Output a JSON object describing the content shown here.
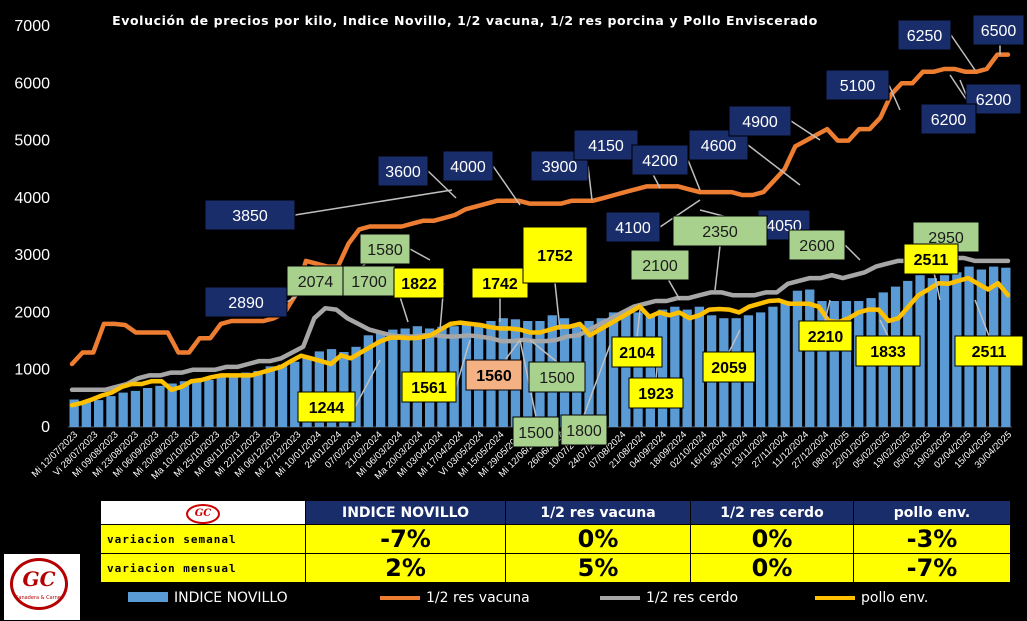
{
  "chart_data": {
    "type": "bar+line",
    "title": "Evolución de precios por kilo, Indice Novillo, 1/2 vacuna, 1/2 res porcina y Pollo Enviscerado",
    "ylim": [
      0,
      7000
    ],
    "yticks": [
      0,
      1000,
      2000,
      3000,
      4000,
      5000,
      6000,
      7000
    ],
    "x_tick_labels": [
      "Mi 12/07/2023",
      "Vi 28/07/2023",
      "Mi 09/08/2023",
      "Mi 23/08/2023",
      "Mi 06/09/2023",
      "Mi 20/09/2023",
      "Ma 10/10/2023",
      "Mi 25/10/2023",
      "Mi 08/11/2023",
      "Mi 22/11/2023",
      "Mi 06/12/2023",
      "Mi 27/12/2023",
      "Mi 10/01/2024",
      "24/01/2024",
      "07/02/2024",
      "21/02/2024",
      "Mi 06/03/2024",
      "Ma 20/03/2024",
      "Mi 03/04/2024",
      "Mi 17/04/2024",
      "Vi 03/05/2024",
      "Mi 15/05/2024",
      "Mi 29/05/2024",
      "Mi 12/06/2024",
      "26/06/2024",
      "10/07/2024",
      "24/07/2024",
      "07/08/2024",
      "21/08/2024",
      "04/09/2024",
      "18/09/2024",
      "02/10/2024",
      "16/10/2024",
      "30/10/2024",
      "13/11/2024",
      "27/11/2024",
      "11/12/2024",
      "27/12/2024",
      "08/01/2025",
      "22/01/2025",
      "05/02/2025",
      "19/02/2025",
      "05/03/2025",
      "19/03/2025",
      "02/04/2025",
      "15/04/2025",
      "30/04/2025"
    ],
    "series": [
      {
        "name": "INDICE NOVILLO",
        "type": "bar",
        "color": "#5b9bd5",
        "values": [
          480,
          450,
          470,
          540,
          600,
          630,
          680,
          720,
          760,
          800,
          830,
          820,
          900,
          920,
          950,
          980,
          1060,
          1090,
          1140,
          1200,
          1320,
          1360,
          1310,
          1400,
          1600,
          1650,
          1700,
          1720,
          1760,
          1720,
          1750,
          1760,
          1800,
          1780,
          1850,
          1900,
          1880,
          1850,
          1850,
          1950,
          1900,
          1800,
          1850,
          1900,
          2000,
          2020,
          2000,
          1950,
          2050,
          2100,
          2050,
          2100,
          1950,
          1900,
          1900,
          1950,
          2000,
          2100,
          2200,
          2380,
          2400,
          2200,
          2200,
          2200,
          2200,
          2250,
          2350,
          2450,
          2550,
          2650,
          2600,
          2650,
          2700,
          2800,
          2750,
          2800,
          2780
        ]
      },
      {
        "name": "1/2 res vacuna",
        "type": "line",
        "color": "#ed7d31",
        "values": [
          1100,
          1300,
          1300,
          1800,
          1800,
          1780,
          1650,
          1650,
          1650,
          1650,
          1300,
          1300,
          1550,
          1550,
          1800,
          1850,
          1850,
          1850,
          1850,
          1900,
          2000,
          2300,
          2900,
          2850,
          2800,
          2800,
          3200,
          3450,
          3500,
          3500,
          3500,
          3500,
          3550,
          3600,
          3600,
          3650,
          3700,
          3800,
          3850,
          3900,
          3950,
          3950,
          3950,
          3900,
          3900,
          3900,
          3900,
          3950,
          3950,
          3950,
          4000,
          4050,
          4100,
          4150,
          4200,
          4200,
          4200,
          4200,
          4150,
          4100,
          4100,
          4100,
          4100,
          4050,
          4050,
          4100,
          4300,
          4500,
          4900,
          5000,
          5100,
          5200,
          5000,
          5000,
          5200,
          5200,
          5400,
          5800,
          6000,
          6000,
          6200,
          6200,
          6250,
          6250,
          6200,
          6200,
          6250,
          6500,
          6500
        ]
      },
      {
        "name": "1/2 res cerdo",
        "type": "line",
        "color": "#a6a6a6",
        "values": [
          650,
          650,
          650,
          650,
          700,
          750,
          850,
          900,
          900,
          950,
          950,
          1000,
          1000,
          1000,
          1050,
          1050,
          1100,
          1150,
          1150,
          1200,
          1300,
          1400,
          1900,
          2074,
          2050,
          1900,
          1800,
          1700,
          1650,
          1600,
          1580,
          1580,
          1600,
          1600,
          1580,
          1580,
          1600,
          1580,
          1550,
          1500,
          1500,
          1520,
          1500,
          1500,
          1520,
          1580,
          1600,
          1700,
          1800,
          1900,
          2000,
          2100,
          2150,
          2200,
          2200,
          2250,
          2250,
          2300,
          2350,
          2350,
          2300,
          2300,
          2300,
          2350,
          2350,
          2500,
          2550,
          2600,
          2600,
          2650,
          2600,
          2650,
          2700,
          2800,
          2850,
          2900,
          2900,
          2950,
          2950,
          2950,
          2950,
          2950,
          2900,
          2900,
          2900,
          2900
        ]
      },
      {
        "name": "pollo env.",
        "type": "line",
        "color": "#ffc000",
        "values": [
          380,
          420,
          480,
          550,
          600,
          700,
          750,
          750,
          800,
          800,
          650,
          700,
          800,
          820,
          870,
          900,
          900,
          900,
          900,
          950,
          1000,
          1050,
          1150,
          1244,
          1200,
          1150,
          1100,
          1250,
          1200,
          1300,
          1400,
          1500,
          1561,
          1560,
          1550,
          1560,
          1600,
          1700,
          1800,
          1822,
          1800,
          1780,
          1742,
          1720,
          1720,
          1700,
          1650,
          1650,
          1700,
          1750,
          1752,
          1800,
          1600,
          1700,
          1800,
          1900,
          2000,
          2104,
          1923,
          2000,
          1950,
          2000,
          1900,
          1950,
          2050,
          2059,
          2050,
          2000,
          2100,
          2150,
          2200,
          2210,
          2150,
          2150,
          2150,
          2100,
          1850,
          1833,
          1900,
          2000,
          2050,
          2050,
          1850,
          1900,
          2100,
          2300,
          2400,
          2511,
          2500,
          2550,
          2600,
          2500,
          2400,
          2511,
          2300
        ]
      }
    ],
    "annotations": [
      {
        "text": "3850",
        "style": "navy"
      },
      {
        "text": "2890",
        "style": "navy"
      },
      {
        "text": "3600",
        "style": "navy"
      },
      {
        "text": "4000",
        "style": "navy"
      },
      {
        "text": "3900",
        "style": "navy"
      },
      {
        "text": "4150",
        "style": "navy"
      },
      {
        "text": "4200",
        "style": "navy"
      },
      {
        "text": "4100",
        "style": "navy"
      },
      {
        "text": "4600",
        "style": "navy"
      },
      {
        "text": "4900",
        "style": "navy"
      },
      {
        "text": "4050",
        "style": "navy"
      },
      {
        "text": "5100",
        "style": "navy"
      },
      {
        "text": "6250",
        "style": "navy"
      },
      {
        "text": "6500",
        "style": "navy"
      },
      {
        "text": "6200",
        "style": "navy"
      },
      {
        "text": "6200",
        "style": "navy"
      },
      {
        "text": "2074",
        "style": "green"
      },
      {
        "text": "1580",
        "style": "green"
      },
      {
        "text": "1700",
        "style": "green"
      },
      {
        "text": "1500",
        "style": "green"
      },
      {
        "text": "1500",
        "style": "green"
      },
      {
        "text": "1800",
        "style": "green"
      },
      {
        "text": "2100",
        "style": "green"
      },
      {
        "text": "2350",
        "style": "green"
      },
      {
        "text": "2600",
        "style": "green"
      },
      {
        "text": "2950",
        "style": "green"
      },
      {
        "text": "1244",
        "style": "yellow"
      },
      {
        "text": "1822",
        "style": "yellow"
      },
      {
        "text": "1742",
        "style": "yellow"
      },
      {
        "text": "1752",
        "style": "yellow"
      },
      {
        "text": "1561",
        "style": "yellow"
      },
      {
        "text": "2104",
        "style": "yellow"
      },
      {
        "text": "1923",
        "style": "yellow"
      },
      {
        "text": "2059",
        "style": "yellow"
      },
      {
        "text": "2210",
        "style": "yellow"
      },
      {
        "text": "1833",
        "style": "yellow"
      },
      {
        "text": "2511",
        "style": "yellow"
      },
      {
        "text": "2511",
        "style": "yellow"
      },
      {
        "text": "1560",
        "style": "salmon"
      }
    ],
    "legend": "bottom"
  },
  "colors": {
    "navy": "#1a2d6b",
    "green": "#a9d18e",
    "yellow": "#ffff00",
    "salmon": "#f4b183",
    "background": "#000000"
  },
  "table": {
    "headers": [
      "INDICE NOVILLO",
      "1/2 res vacuna",
      "1/2 res cerdo",
      "pollo env."
    ],
    "rows": [
      {
        "label": "variacion semanal",
        "values": [
          "-7%",
          "0%",
          "0%",
          "-3%"
        ]
      },
      {
        "label": "variacion mensual",
        "values": [
          "2%",
          "5%",
          "0%",
          "-7%"
        ]
      }
    ]
  },
  "logo": {
    "text": "GC",
    "subtext": "Ganadera & Carnes"
  }
}
